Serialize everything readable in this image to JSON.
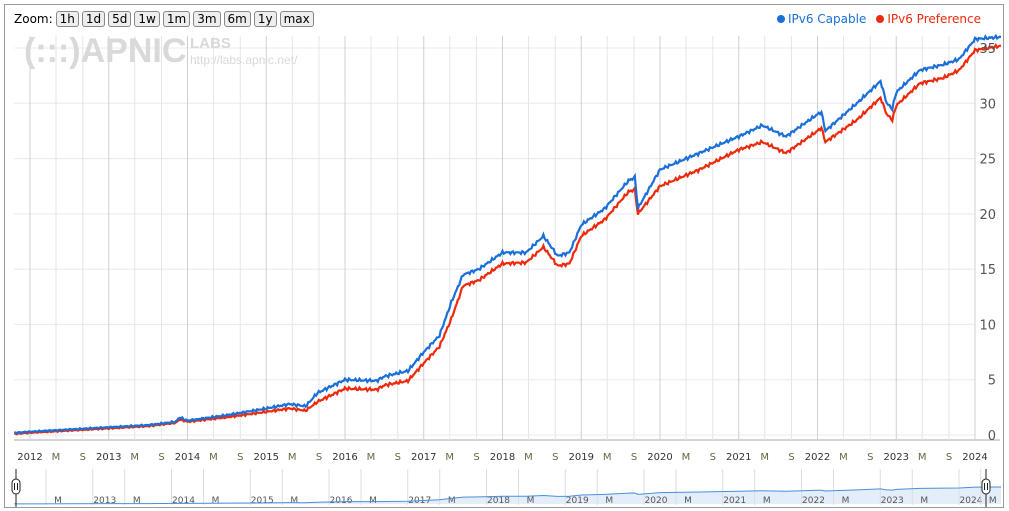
{
  "zoom": {
    "label": "Zoom:",
    "buttons": [
      "1h",
      "1d",
      "5d",
      "1w",
      "1m",
      "3m",
      "6m",
      "1y",
      "max"
    ]
  },
  "watermark": {
    "logo": "(:::)APNIC",
    "labs": "LABS",
    "url": "http://labs.apnic.net/"
  },
  "colors": {
    "capable": "#1a6fd8",
    "preference": "#ee2a0c",
    "grid": "#dcdcdc",
    "nav_fill": "#e3eefa"
  },
  "chart_data": {
    "type": "line",
    "title": "",
    "xlabel": "",
    "ylabel": "",
    "xlim": [
      2011.8,
      2024.33
    ],
    "ylim": [
      0,
      35
    ],
    "yticks": [
      0,
      5,
      10,
      15,
      20,
      25,
      30,
      35
    ],
    "xticks": [
      {
        "v": 2012,
        "l": "2012"
      },
      {
        "v": 2012.33,
        "l": "M"
      },
      {
        "v": 2012.67,
        "l": "S"
      },
      {
        "v": 2013,
        "l": "2013"
      },
      {
        "v": 2013.33,
        "l": "M"
      },
      {
        "v": 2013.67,
        "l": "S"
      },
      {
        "v": 2014,
        "l": "2014"
      },
      {
        "v": 2014.33,
        "l": "M"
      },
      {
        "v": 2014.67,
        "l": "S"
      },
      {
        "v": 2015,
        "l": "2015"
      },
      {
        "v": 2015.33,
        "l": "M"
      },
      {
        "v": 2015.67,
        "l": "S"
      },
      {
        "v": 2016,
        "l": "2016"
      },
      {
        "v": 2016.33,
        "l": "M"
      },
      {
        "v": 2016.67,
        "l": "S"
      },
      {
        "v": 2017,
        "l": "2017"
      },
      {
        "v": 2017.33,
        "l": "M"
      },
      {
        "v": 2017.67,
        "l": "S"
      },
      {
        "v": 2018,
        "l": "2018"
      },
      {
        "v": 2018.33,
        "l": "M"
      },
      {
        "v": 2018.67,
        "l": "S"
      },
      {
        "v": 2019,
        "l": "2019"
      },
      {
        "v": 2019.33,
        "l": "M"
      },
      {
        "v": 2019.67,
        "l": "S"
      },
      {
        "v": 2020,
        "l": "2020"
      },
      {
        "v": 2020.33,
        "l": "M"
      },
      {
        "v": 2020.67,
        "l": "S"
      },
      {
        "v": 2021,
        "l": "2021"
      },
      {
        "v": 2021.33,
        "l": "M"
      },
      {
        "v": 2021.67,
        "l": "S"
      },
      {
        "v": 2022,
        "l": "2022"
      },
      {
        "v": 2022.33,
        "l": "M"
      },
      {
        "v": 2022.67,
        "l": "S"
      },
      {
        "v": 2023,
        "l": "2023"
      },
      {
        "v": 2023.33,
        "l": "M"
      },
      {
        "v": 2023.67,
        "l": "S"
      },
      {
        "v": 2024,
        "l": "2024"
      }
    ],
    "nav_ticks": [
      {
        "v": 2012.33,
        "l": "M"
      },
      {
        "v": 2013,
        "l": "2013"
      },
      {
        "v": 2013.33,
        "l": "M"
      },
      {
        "v": 2014,
        "l": "2014"
      },
      {
        "v": 2014.33,
        "l": "M"
      },
      {
        "v": 2015,
        "l": "2015"
      },
      {
        "v": 2015.33,
        "l": "M"
      },
      {
        "v": 2016,
        "l": "2016"
      },
      {
        "v": 2016.33,
        "l": "M"
      },
      {
        "v": 2017,
        "l": "2017"
      },
      {
        "v": 2017.33,
        "l": "M"
      },
      {
        "v": 2018,
        "l": "2018"
      },
      {
        "v": 2018.33,
        "l": "M"
      },
      {
        "v": 2019,
        "l": "2019"
      },
      {
        "v": 2019.33,
        "l": "M"
      },
      {
        "v": 2020,
        "l": "2020"
      },
      {
        "v": 2020.33,
        "l": "M"
      },
      {
        "v": 2021,
        "l": "2021"
      },
      {
        "v": 2021.33,
        "l": "M"
      },
      {
        "v": 2022,
        "l": "2022"
      },
      {
        "v": 2022.33,
        "l": "M"
      },
      {
        "v": 2023,
        "l": "2023"
      },
      {
        "v": 2023.33,
        "l": "M"
      },
      {
        "v": 2024,
        "l": "2024"
      },
      {
        "v": 2024.2,
        "l": "M"
      }
    ],
    "legend_position": "top-right",
    "series": [
      {
        "name": "IPv6 Capable",
        "x": [
          2011.8,
          2012,
          2012.5,
          2013,
          2013.5,
          2013.85,
          2013.9,
          2014,
          2014.5,
          2015,
          2015.3,
          2015.5,
          2015.65,
          2016,
          2016.4,
          2016.5,
          2016.8,
          2017,
          2017.2,
          2017.35,
          2017.5,
          2017.7,
          2018,
          2018.3,
          2018.52,
          2018.7,
          2018.85,
          2019,
          2019.3,
          2019.6,
          2019.68,
          2019.72,
          2020,
          2020.5,
          2021,
          2021.3,
          2021.6,
          2022,
          2022.05,
          2022.1,
          2022.5,
          2022.8,
          2022.88,
          2022.95,
          2023,
          2023.3,
          2023.6,
          2023.8,
          2024,
          2024.33
        ],
        "y": [
          0.2,
          0.3,
          0.5,
          0.7,
          0.9,
          1.2,
          1.6,
          1.3,
          1.8,
          2.4,
          2.8,
          2.6,
          3.8,
          5.0,
          4.9,
          5.3,
          5.8,
          7.5,
          9.0,
          12.0,
          14.5,
          15.0,
          16.5,
          16.5,
          18.0,
          16.2,
          16.5,
          19.0,
          20.5,
          23.0,
          23.3,
          20.5,
          24.0,
          25.5,
          27.0,
          28.0,
          27.0,
          29.0,
          29.2,
          27.5,
          30.0,
          32.0,
          30.0,
          29.5,
          31.0,
          33.0,
          33.5,
          34.0,
          35.8,
          36.0
        ]
      },
      {
        "name": "IPv6 Preference",
        "x": [
          2011.8,
          2012,
          2012.5,
          2013,
          2013.5,
          2013.85,
          2013.9,
          2014,
          2014.5,
          2015,
          2015.3,
          2015.5,
          2015.65,
          2016,
          2016.4,
          2016.5,
          2016.8,
          2017,
          2017.2,
          2017.35,
          2017.5,
          2017.7,
          2018,
          2018.3,
          2018.52,
          2018.7,
          2018.85,
          2019,
          2019.3,
          2019.6,
          2019.68,
          2019.72,
          2020,
          2020.5,
          2021,
          2021.3,
          2021.6,
          2022,
          2022.05,
          2022.1,
          2022.5,
          2022.8,
          2022.88,
          2022.95,
          2023,
          2023.3,
          2023.6,
          2023.8,
          2024,
          2024.33
        ],
        "y": [
          0.1,
          0.2,
          0.4,
          0.6,
          0.8,
          1.1,
          1.4,
          1.2,
          1.6,
          2.1,
          2.4,
          2.2,
          3.0,
          4.2,
          4.1,
          4.5,
          4.9,
          6.5,
          8.0,
          10.5,
          13.5,
          14.0,
          15.5,
          15.6,
          17.0,
          15.3,
          15.5,
          18.0,
          19.5,
          22.0,
          22.2,
          20.0,
          22.5,
          24.0,
          25.8,
          26.5,
          25.5,
          27.5,
          27.8,
          26.5,
          28.5,
          30.5,
          29.0,
          28.5,
          29.8,
          31.8,
          32.3,
          33.0,
          34.8,
          35.2
        ]
      }
    ]
  }
}
